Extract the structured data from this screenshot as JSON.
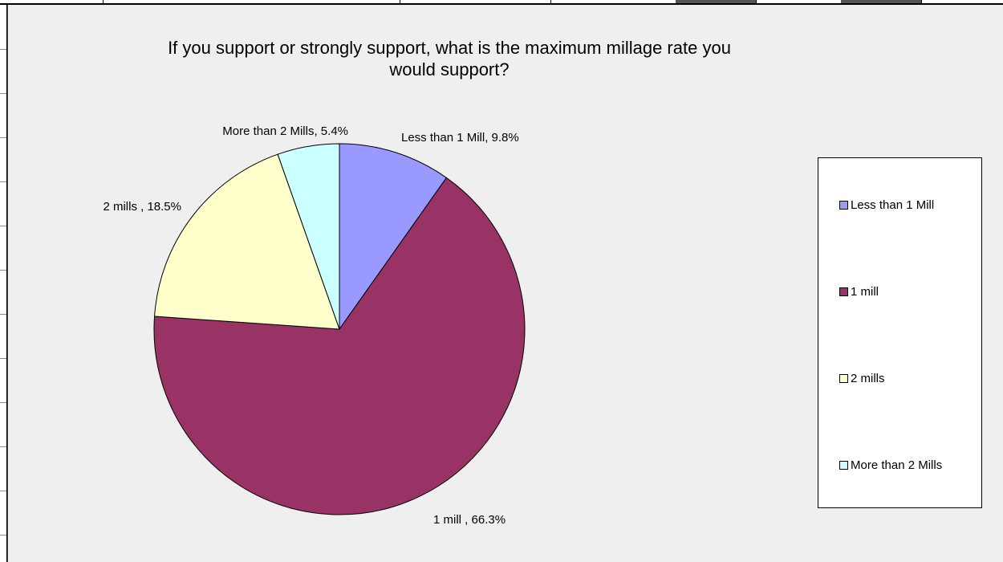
{
  "chart_data": {
    "type": "pie",
    "title": "If you support or strongly support, what is the maximum millage rate you would support?",
    "title_lines": [
      "If you support or strongly support, what is the maximum millage rate you",
      "would support?"
    ],
    "categories": [
      "Less than 1 Mill",
      "1 mill",
      "2 mills",
      "More than 2 Mills"
    ],
    "values": [
      9.8,
      66.3,
      18.5,
      5.4
    ],
    "data_labels": [
      "Less than 1 Mill, 9.8%",
      "1 mill , 66.3%",
      "2 mills , 18.5%",
      "More than 2 Mills, 5.4%"
    ],
    "colors": [
      "#9999ff",
      "#993366",
      "#ffffcc",
      "#ccffff"
    ],
    "legend": {
      "position": "right",
      "entries": [
        "Less than 1 Mill",
        "1 mill",
        "2 mills",
        "More than 2 Mills"
      ]
    }
  }
}
